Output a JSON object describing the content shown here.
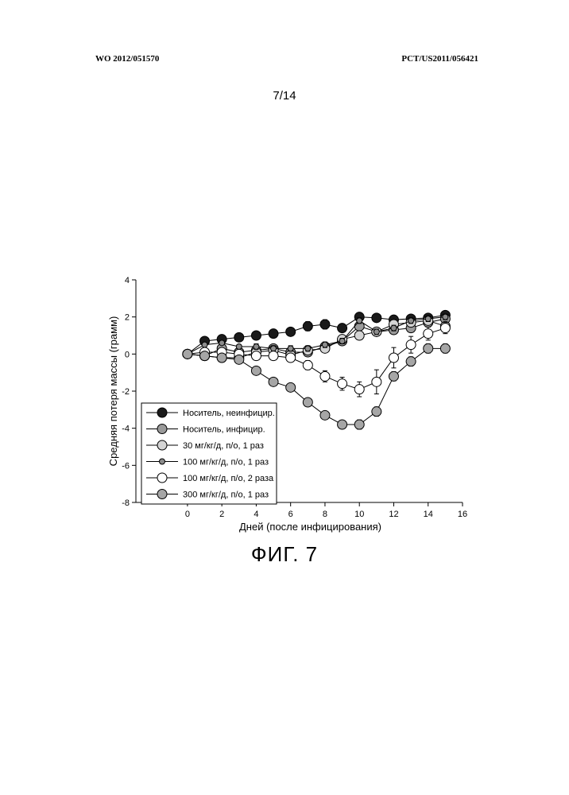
{
  "header": {
    "left": "WO 2012/051570",
    "right": "PCT/US2011/056421"
  },
  "page_number": "7/14",
  "figure_caption": "ФИГ. 7",
  "chart_data": {
    "type": "line",
    "xlabel": "Дней (после инфицирования)",
    "ylabel": "Средняя потеря массы (грамм)",
    "xlim": [
      -3,
      16
    ],
    "ylim": [
      -8,
      4
    ],
    "x_ticks": [
      0,
      2,
      4,
      6,
      8,
      10,
      12,
      14,
      16
    ],
    "y_ticks": [
      4,
      2,
      0,
      -2,
      -4,
      -6,
      -8
    ],
    "legend_position": "bottom-left",
    "x": [
      0,
      1,
      2,
      3,
      4,
      5,
      6,
      7,
      8,
      9,
      10,
      11,
      12,
      13,
      14,
      15
    ],
    "series": [
      {
        "name": "Носитель, неинфицир.",
        "marker": "#1a1a1a",
        "marker_size": 6,
        "values": [
          0,
          0.7,
          0.8,
          0.9,
          1.0,
          1.1,
          1.2,
          1.5,
          1.6,
          1.4,
          2.0,
          1.95,
          1.85,
          1.9,
          1.95,
          2.1
        ],
        "errors": [
          0,
          0.15,
          0.2,
          0.2,
          0.2,
          0.2,
          0.2,
          0.25,
          0.25,
          0.2,
          0.2,
          0.15,
          0.2,
          0.2,
          0.15,
          0.15
        ]
      },
      {
        "name": "Носитель, инфицир.",
        "marker": "#9a9a9a",
        "marker_size": 6,
        "values": [
          0,
          -0.1,
          0.3,
          0.1,
          0.2,
          0.3,
          0.1,
          0.1,
          0.4,
          0.7,
          1.5,
          1.2,
          1.3,
          1.4,
          1.7,
          1.9
        ],
        "errors": [
          0,
          0.15,
          0.15,
          0.15,
          0.2,
          0.2,
          0.2,
          0.2,
          0.2,
          0.2,
          0.2,
          0.2,
          0.2,
          0.2,
          0.2,
          0.2
        ]
      },
      {
        "name": "30 мг/кг/д, п/о, 1 раз",
        "marker": "#d4d4d4",
        "marker_size": 6,
        "values": [
          0,
          -0.1,
          -0.2,
          -0.2,
          0.1,
          0.2,
          -0.05,
          0.2,
          0.3,
          0.8,
          1.0,
          1.2,
          1.6,
          1.7,
          1.8,
          1.5
        ],
        "errors": [
          0,
          0.15,
          0.15,
          0.15,
          0.2,
          0.2,
          0.2,
          0.2,
          0.2,
          0.2,
          0.2,
          0.2,
          0.2,
          0.2,
          0.2,
          0.2
        ]
      },
      {
        "name": "100 мг/кг/д, п/о, 1 раз",
        "marker": "#8c8c8c",
        "marker_size": 3.5,
        "values": [
          0,
          0.5,
          0.6,
          0.4,
          0.4,
          0.3,
          0.3,
          0.3,
          0.5,
          0.7,
          1.8,
          1.2,
          1.4,
          1.8,
          1.9,
          2.0
        ],
        "errors": [
          0,
          0.1,
          0.1,
          0.1,
          0.15,
          0.15,
          0.15,
          0.15,
          0.15,
          0.15,
          0.15,
          0.15,
          0.15,
          0.15,
          0.15,
          0.15
        ]
      },
      {
        "name": "100 мг/кг/д, п/о, 2 раза",
        "marker": "#ffffff",
        "marker_size": 6,
        "values": [
          0,
          0.1,
          0.1,
          0.0,
          -0.1,
          -0.1,
          -0.2,
          -0.6,
          -1.2,
          -1.6,
          -1.9,
          -1.5,
          -0.2,
          0.5,
          1.1,
          1.4
        ],
        "errors": [
          0,
          0.15,
          0.15,
          0.15,
          0.15,
          0.2,
          0.2,
          0.25,
          0.3,
          0.35,
          0.4,
          0.65,
          0.55,
          0.45,
          0.35,
          0.3
        ]
      },
      {
        "name": "300 мг/кг/д, п/о, 1 раз",
        "marker": "#a6a6a6",
        "marker_size": 6,
        "values": [
          0,
          -0.1,
          -0.2,
          -0.3,
          -0.9,
          -1.5,
          -1.8,
          -2.6,
          -3.3,
          -3.8,
          -3.8,
          -3.1,
          -1.2,
          -0.4,
          0.3,
          0.3
        ],
        "errors": [
          0,
          0.1,
          0.1,
          0.15,
          0.15,
          0.15,
          0.15,
          0.2,
          0.2,
          0.2,
          0.25,
          0.25,
          0.25,
          0.25,
          0.25,
          0.25
        ]
      }
    ]
  }
}
